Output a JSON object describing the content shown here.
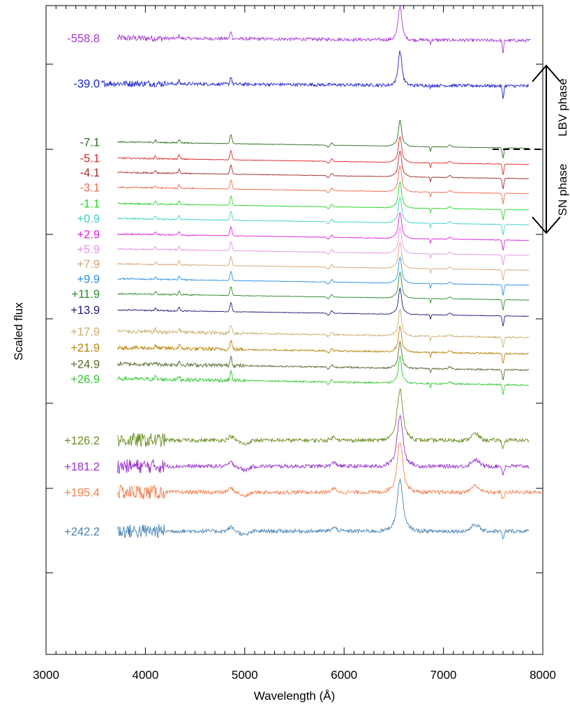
{
  "chart_data": {
    "type": "line",
    "xlabel": "Wavelength (Å)",
    "ylabel": "Scaled flux",
    "xlim": [
      3000,
      8000
    ],
    "x_ticks": [
      "3000",
      "4000",
      "5000",
      "6000",
      "7000",
      "8000"
    ],
    "grid": false,
    "series": [
      {
        "name": "-558.8",
        "color": "#a63ad4",
        "offset": 950,
        "wl": [
          3720,
          7880
        ],
        "kind": "lbv"
      },
      {
        "name": "-39.0",
        "color": "#1a22c8",
        "offset": 880,
        "wl": [
          3560,
          7860
        ],
        "kind": "lbv"
      },
      {
        "name": "-7.1",
        "color": "#2a6e1e",
        "offset": 790,
        "wl": [
          3720,
          7860
        ],
        "kind": "sn"
      },
      {
        "name": "-5.1",
        "color": "#e02626",
        "offset": 765,
        "wl": [
          3720,
          7860
        ],
        "kind": "sn"
      },
      {
        "name": "-4.1",
        "color": "#a52a2a",
        "offset": 743,
        "wl": [
          3720,
          7860
        ],
        "kind": "sn"
      },
      {
        "name": "-3.1",
        "color": "#f0664a",
        "offset": 720,
        "wl": [
          3720,
          7860
        ],
        "kind": "sn"
      },
      {
        "name": "-1.1",
        "color": "#22d622",
        "offset": 695,
        "wl": [
          3720,
          7860
        ],
        "kind": "sn"
      },
      {
        "name": "+0.9",
        "color": "#3ed0c8",
        "offset": 672,
        "wl": [
          3720,
          7860
        ],
        "kind": "sn"
      },
      {
        "name": "+2.9",
        "color": "#e020e0",
        "offset": 648,
        "wl": [
          3720,
          7860
        ],
        "kind": "sn"
      },
      {
        "name": "+5.9",
        "color": "#e690e6",
        "offset": 625,
        "wl": [
          3720,
          7860
        ],
        "kind": "sn"
      },
      {
        "name": "+7.9",
        "color": "#d8a574",
        "offset": 602,
        "wl": [
          3720,
          7860
        ],
        "kind": "sn"
      },
      {
        "name": "+9.9",
        "color": "#2a8ee8",
        "offset": 579,
        "wl": [
          3720,
          7860
        ],
        "kind": "sn"
      },
      {
        "name": "+11.9",
        "color": "#2a8a2a",
        "offset": 556,
        "wl": [
          3720,
          7860
        ],
        "kind": "sn"
      },
      {
        "name": "+13.9",
        "color": "#1a1a78",
        "offset": 531,
        "wl": [
          3720,
          7860
        ],
        "kind": "sn"
      },
      {
        "name": "+17.9",
        "color": "#c8b070",
        "offset": 498,
        "wl": [
          3720,
          7860
        ],
        "kind": "snlate"
      },
      {
        "name": "+21.9",
        "color": "#b8860b",
        "offset": 473,
        "wl": [
          3720,
          7860
        ],
        "kind": "snlate"
      },
      {
        "name": "+24.9",
        "color": "#556b2f",
        "offset": 448,
        "wl": [
          3720,
          7860
        ],
        "kind": "snlate"
      },
      {
        "name": "+26.9",
        "color": "#32c832",
        "offset": 425,
        "wl": [
          3720,
          7860
        ],
        "kind": "snlate"
      },
      {
        "name": "+126.2",
        "color": "#6b8e23",
        "offset": 330,
        "wl": [
          3720,
          7860
        ],
        "kind": "neb"
      },
      {
        "name": "+181.2",
        "color": "#9932cc",
        "offset": 290,
        "wl": [
          3720,
          7860
        ],
        "kind": "neb"
      },
      {
        "name": "+195.4",
        "color": "#f08050",
        "offset": 250,
        "wl": [
          3720,
          7990
        ],
        "kind": "neb"
      },
      {
        "name": "+242.2",
        "color": "#4682b4",
        "offset": 190,
        "wl": [
          3720,
          7860
        ],
        "kind": "neb"
      }
    ],
    "annotations": {
      "lbv_phase": "LBV phase",
      "sn_phase": "SN phase"
    }
  }
}
